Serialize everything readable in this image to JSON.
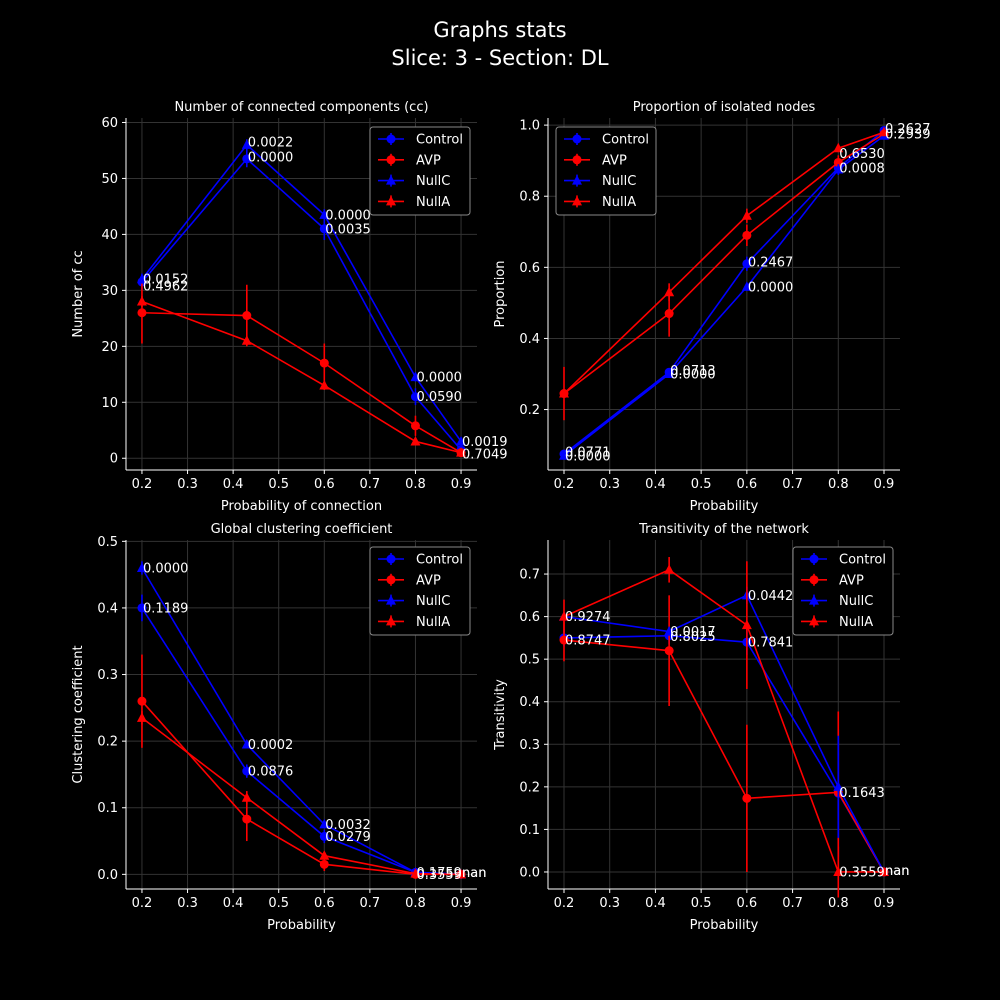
{
  "figure": {
    "title_line1": "Graphs stats",
    "title_line2": "Slice: 3  -  Section: DL"
  },
  "colors": {
    "Control": "#0000ff",
    "AVP": "#ff0000",
    "NullC": "#0000ff",
    "NullA": "#ff0000",
    "background": "#000000",
    "grid": "#333333"
  },
  "chart_data": [
    {
      "type": "line",
      "title": "Number of connected components (cc)",
      "xlabel": "Probability of connection",
      "ylabel": "Number of cc",
      "xlim": [
        0.165,
        0.935
      ],
      "ylim": [
        -2.1,
        60.8
      ],
      "xticks": [
        0.2,
        0.3,
        0.4,
        0.5,
        0.6,
        0.7,
        0.8,
        0.9
      ],
      "yticks": [
        0,
        10,
        20,
        30,
        40,
        50,
        60
      ],
      "x": [
        0.2,
        0.43,
        0.6,
        0.8,
        0.9
      ],
      "legend": "top-right",
      "series": [
        {
          "name": "Control",
          "marker": "circle",
          "values": [
            31.5,
            53.5,
            41.0,
            11.0,
            1.5
          ],
          "err": [
            1.5,
            1.5,
            2.0,
            1.5,
            0.5
          ]
        },
        {
          "name": "AVP",
          "marker": "circle",
          "values": [
            26.0,
            25.5,
            17.0,
            5.8,
            1.0
          ],
          "err": [
            5.5,
            5.5,
            3.5,
            1.8,
            0.3
          ]
        },
        {
          "name": "NullC",
          "marker": "triangle",
          "values": [
            32.0,
            56.0,
            43.5,
            14.5,
            3.0
          ],
          "err": [
            0.8,
            1.0,
            1.0,
            0.8,
            0.3
          ]
        },
        {
          "name": "NullA",
          "marker": "triangle",
          "values": [
            28.0,
            21.0,
            13.0,
            3.0,
            1.0
          ],
          "err": [
            1.0,
            0.8,
            0.8,
            0.5,
            0.2
          ]
        }
      ],
      "annotations": [
        {
          "x": 0.2,
          "y": 32.0,
          "text": "0.0152"
        },
        {
          "x": 0.2,
          "y": 30.8,
          "text": "0.4962"
        },
        {
          "x": 0.43,
          "y": 56.5,
          "text": "0.0022"
        },
        {
          "x": 0.43,
          "y": 53.8,
          "text": "0.0000"
        },
        {
          "x": 0.6,
          "y": 43.5,
          "text": "0.0000"
        },
        {
          "x": 0.6,
          "y": 41.0,
          "text": "0.0035"
        },
        {
          "x": 0.8,
          "y": 14.5,
          "text": "0.0000"
        },
        {
          "x": 0.8,
          "y": 11.0,
          "text": "0.0590"
        },
        {
          "x": 0.9,
          "y": 3.0,
          "text": "0.0019"
        },
        {
          "x": 0.9,
          "y": 0.8,
          "text": "0.7049"
        }
      ]
    },
    {
      "type": "line",
      "title": "Proportion of isolated nodes",
      "xlabel": "Probability",
      "ylabel": "Proportion",
      "xlim": [
        0.165,
        0.935
      ],
      "ylim": [
        0.03,
        1.02
      ],
      "xticks": [
        0.2,
        0.3,
        0.4,
        0.5,
        0.6,
        0.7,
        0.8,
        0.9
      ],
      "yticks": [
        0.2,
        0.4,
        0.6,
        0.8,
        1.0
      ],
      "x": [
        0.2,
        0.43,
        0.6,
        0.8,
        0.9
      ],
      "legend": "top-left",
      "series": [
        {
          "name": "Control",
          "marker": "circle",
          "values": [
            0.075,
            0.305,
            0.61,
            0.88,
            0.985
          ],
          "err": [
            0.01,
            0.01,
            0.02,
            0.02,
            0.005
          ]
        },
        {
          "name": "AVP",
          "marker": "circle",
          "values": [
            0.245,
            0.47,
            0.69,
            0.895,
            0.975
          ],
          "err": [
            0.075,
            0.065,
            0.03,
            0.02,
            0.01
          ]
        },
        {
          "name": "NullC",
          "marker": "triangle",
          "values": [
            0.07,
            0.3,
            0.545,
            0.875,
            0.97
          ],
          "err": [
            0.005,
            0.01,
            0.01,
            0.015,
            0.005
          ]
        },
        {
          "name": "NullA",
          "marker": "triangle",
          "values": [
            0.245,
            0.53,
            0.745,
            0.935,
            0.98
          ],
          "err": [
            0.01,
            0.025,
            0.02,
            0.01,
            0.005
          ]
        }
      ],
      "annotations": [
        {
          "x": 0.2,
          "y": 0.08,
          "text": "0.0771"
        },
        {
          "x": 0.2,
          "y": 0.07,
          "text": "0.0000"
        },
        {
          "x": 0.43,
          "y": 0.31,
          "text": "0.0713"
        },
        {
          "x": 0.43,
          "y": 0.3,
          "text": "0.0000"
        },
        {
          "x": 0.6,
          "y": 0.615,
          "text": "0.2467"
        },
        {
          "x": 0.6,
          "y": 0.545,
          "text": "0.0000"
        },
        {
          "x": 0.8,
          "y": 0.92,
          "text": "0.6530"
        },
        {
          "x": 0.8,
          "y": 0.88,
          "text": "0.0008"
        },
        {
          "x": 0.9,
          "y": 0.99,
          "text": "0.2627"
        },
        {
          "x": 0.9,
          "y": 0.975,
          "text": "0.2939"
        }
      ]
    },
    {
      "type": "line",
      "title": "Global clustering coefficient",
      "xlabel": "Probability",
      "ylabel": "Clustering coefficient",
      "xlim": [
        0.165,
        0.935
      ],
      "ylim": [
        -0.022,
        0.502
      ],
      "xticks": [
        0.2,
        0.3,
        0.4,
        0.5,
        0.6,
        0.7,
        0.8,
        0.9
      ],
      "yticks": [
        0.0,
        0.1,
        0.2,
        0.3,
        0.4,
        0.5
      ],
      "x": [
        0.2,
        0.43,
        0.6,
        0.8,
        0.9
      ],
      "legend": "top-right",
      "series": [
        {
          "name": "Control",
          "marker": "circle",
          "values": [
            0.4,
            0.155,
            0.057,
            0.003,
            0.0
          ],
          "err": [
            0.02,
            0.01,
            0.01,
            0.002,
            0.0
          ]
        },
        {
          "name": "AVP",
          "marker": "circle",
          "values": [
            0.26,
            0.083,
            0.015,
            0.0,
            0.0
          ],
          "err": [
            0.07,
            0.033,
            0.01,
            0.0,
            0.0
          ]
        },
        {
          "name": "NullC",
          "marker": "triangle",
          "values": [
            0.46,
            0.195,
            0.075,
            0.003,
            0.0
          ],
          "err": [
            0.01,
            0.005,
            0.005,
            0.001,
            0.0
          ]
        },
        {
          "name": "NullA",
          "marker": "triangle",
          "values": [
            0.235,
            0.115,
            0.028,
            0.001,
            0.0
          ],
          "err": [
            0.01,
            0.01,
            0.005,
            0.001,
            0.0
          ]
        }
      ],
      "annotations": [
        {
          "x": 0.2,
          "y": 0.46,
          "text": "0.0000"
        },
        {
          "x": 0.2,
          "y": 0.4,
          "text": "0.1189"
        },
        {
          "x": 0.43,
          "y": 0.195,
          "text": "0.0002"
        },
        {
          "x": 0.43,
          "y": 0.155,
          "text": "0.0876"
        },
        {
          "x": 0.6,
          "y": 0.075,
          "text": "0.0032"
        },
        {
          "x": 0.6,
          "y": 0.057,
          "text": "0.0279"
        },
        {
          "x": 0.8,
          "y": 0.003,
          "text": "0.1759"
        },
        {
          "x": 0.8,
          "y": 0.0,
          "text": "0.3559"
        },
        {
          "x": 0.9,
          "y": 0.003,
          "text": "nan"
        },
        {
          "x": 0.9,
          "y": 0.003,
          "text": "nan"
        }
      ]
    },
    {
      "type": "line",
      "title": "Transitivity of the network",
      "xlabel": "Probability",
      "ylabel": "Transitivity",
      "xlim": [
        0.165,
        0.935
      ],
      "ylim": [
        -0.04,
        0.78
      ],
      "xticks": [
        0.2,
        0.3,
        0.4,
        0.5,
        0.6,
        0.7,
        0.8,
        0.9
      ],
      "yticks": [
        0.0,
        0.1,
        0.2,
        0.3,
        0.4,
        0.5,
        0.6,
        0.7
      ],
      "x": [
        0.2,
        0.43,
        0.6,
        0.8,
        0.9
      ],
      "legend": "top-right",
      "series": [
        {
          "name": "Control",
          "marker": "circle",
          "values": [
            0.55,
            0.555,
            0.54,
            0.185,
            0.0
          ],
          "err": [
            0.02,
            0.02,
            0.03,
            0.15,
            0.0
          ]
        },
        {
          "name": "AVP",
          "marker": "circle",
          "values": [
            0.545,
            0.52,
            0.173,
            0.187,
            0.0
          ],
          "err": [
            0.05,
            0.13,
            0.173,
            0.19,
            0.0
          ]
        },
        {
          "name": "NullC",
          "marker": "triangle",
          "values": [
            0.6,
            0.565,
            0.65,
            0.2,
            0.0
          ],
          "err": [
            0.01,
            0.01,
            0.02,
            0.12,
            0.0
          ]
        },
        {
          "name": "NullA",
          "marker": "triangle",
          "values": [
            0.6,
            0.71,
            0.58,
            0.0,
            0.0
          ],
          "err": [
            0.04,
            0.03,
            0.15,
            0.06,
            0.0
          ]
        }
      ],
      "annotations": [
        {
          "x": 0.2,
          "y": 0.6,
          "text": "0.9274"
        },
        {
          "x": 0.2,
          "y": 0.545,
          "text": "0.8747"
        },
        {
          "x": 0.43,
          "y": 0.565,
          "text": "0.0017"
        },
        {
          "x": 0.43,
          "y": 0.553,
          "text": "0.8025"
        },
        {
          "x": 0.6,
          "y": 0.65,
          "text": "0.0442"
        },
        {
          "x": 0.6,
          "y": 0.54,
          "text": "0.7841"
        },
        {
          "x": 0.8,
          "y": 0.187,
          "text": "0.1643"
        },
        {
          "x": 0.8,
          "y": 0.0,
          "text": "0.3559"
        },
        {
          "x": 0.9,
          "y": 0.003,
          "text": "nan"
        },
        {
          "x": 0.9,
          "y": 0.003,
          "text": "nan"
        }
      ]
    }
  ]
}
